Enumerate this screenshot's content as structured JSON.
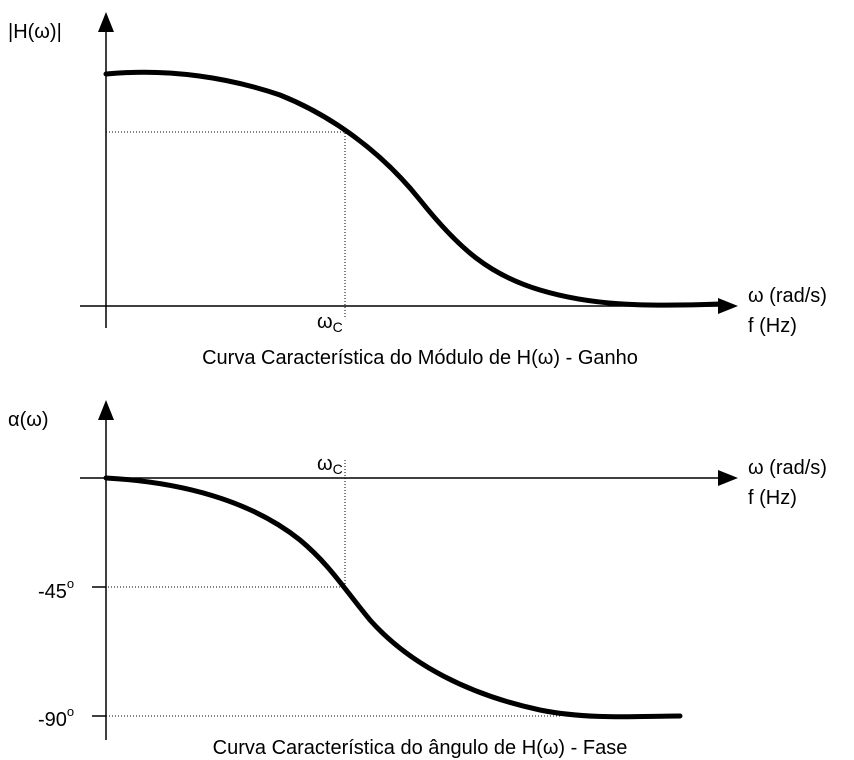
{
  "top": {
    "y_label": "|H(ω)|",
    "x_label": "ω (rad/s)",
    "x_label2": "f (Hz)",
    "wc": {
      "text": "ω",
      "sub": "C"
    },
    "caption": "Curva Característica do Módulo de H(ω) - Ganho"
  },
  "bottom": {
    "y_label": "α(ω)",
    "x_label": "ω (rad/s)",
    "x_label2": "f (Hz)",
    "wc": {
      "text": "ω",
      "sub": "C"
    },
    "tick45": {
      "text": "-45",
      "sup": "o"
    },
    "tick90": {
      "text": "-90",
      "sup": "o"
    },
    "caption": "Curva Característica do ângulo de H(ω) - Fase"
  }
}
